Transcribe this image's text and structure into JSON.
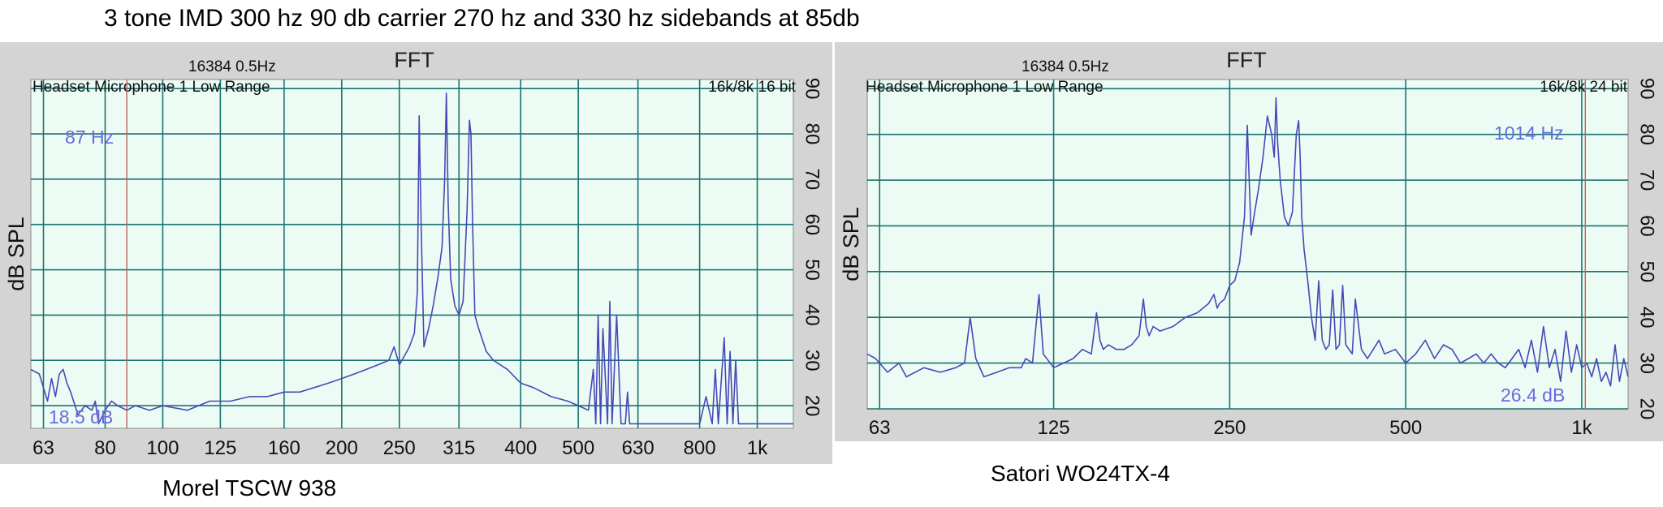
{
  "title": "3 tone IMD 300 hz 90 db carrier 270 hz and 330 hz sidebands at 85db",
  "colors": {
    "plot_bg": "#ecfcf4",
    "grid": "#1b7272",
    "trace": "#4848b8",
    "cursor": "#c06060",
    "frame": "#d4d4d4",
    "label_blue": "#6a6ae0"
  },
  "chart_data": [
    {
      "type": "line",
      "caption": "Morel TSCW 938",
      "header": "FFT",
      "fft_info": "16384  0.5Hz",
      "device": "Headset Microphone 1 Low Range",
      "format": "16k/8k 16 bit",
      "ylabel": "dB SPL",
      "x_scale": "log",
      "xlim": [
        60,
        1150
      ],
      "ylim": [
        15,
        92
      ],
      "x_ticks": [
        63,
        80,
        100,
        125,
        160,
        200,
        250,
        315,
        400,
        500,
        630,
        800,
        1000
      ],
      "x_tick_labels": [
        "63",
        "80",
        "100",
        "125",
        "160",
        "200",
        "250",
        "315",
        "400",
        "500",
        "630",
        "800",
        "1k"
      ],
      "y_ticks": [
        20,
        30,
        40,
        50,
        60,
        70,
        80,
        90
      ],
      "cursor": {
        "x": 87,
        "freq_label": "87 Hz",
        "level_label": "18.5 dB"
      },
      "series": [
        {
          "x": [
            60,
            62,
            64,
            65,
            66,
            67,
            68,
            69,
            70,
            72,
            74,
            76,
            77,
            78,
            80,
            82,
            84,
            87,
            90,
            95,
            100,
            110,
            120,
            130,
            140,
            150,
            160,
            170,
            180,
            190,
            200,
            210,
            220,
            230,
            240,
            245,
            250,
            255,
            260,
            265,
            268,
            270,
            272,
            275,
            280,
            285,
            290,
            295,
            298,
            300,
            302,
            305,
            310,
            315,
            320,
            325,
            328,
            330,
            332,
            335,
            340,
            350,
            360,
            380,
            400,
            420,
            450,
            480,
            500,
            520,
            530,
            535,
            540,
            545,
            550,
            560,
            565,
            570,
            580,
            590,
            600,
            605,
            610,
            620,
            630,
            650,
            700,
            750,
            800,
            820,
            840,
            850,
            860,
            880,
            890,
            900,
            910,
            920,
            930,
            950,
            1000,
            1050,
            1100,
            1150
          ],
          "y": [
            28,
            27,
            21,
            26,
            22,
            27,
            28,
            25,
            23,
            18,
            20,
            19,
            21,
            16,
            19,
            21,
            20,
            19,
            20,
            19,
            20,
            19,
            21,
            21,
            22,
            22,
            23,
            23,
            24,
            25,
            26,
            27,
            28,
            29,
            30,
            33,
            29,
            31,
            33,
            36,
            45,
            84,
            60,
            33,
            37,
            42,
            48,
            55,
            70,
            89,
            65,
            48,
            42,
            40,
            43,
            63,
            83,
            80,
            60,
            40,
            37,
            32,
            30,
            28,
            25,
            24,
            22,
            21,
            20,
            19,
            28,
            16,
            40,
            16,
            37,
            16,
            43,
            16,
            40,
            16,
            16,
            23,
            16,
            16,
            16,
            16,
            16,
            16,
            16,
            22,
            16,
            28,
            16,
            35,
            16,
            32,
            16,
            30,
            16,
            16,
            16,
            16,
            16,
            16
          ]
        }
      ]
    },
    {
      "type": "line",
      "caption": "Satori WO24TX-4",
      "header": "FFT",
      "fft_info": "16384  0.5Hz",
      "device": "Headset Microphone 1 Low Range",
      "format": "16k/8k 24 bit",
      "ylabel": "dB SPL",
      "x_scale": "log",
      "xlim": [
        60,
        1200
      ],
      "ylim": [
        20,
        92
      ],
      "x_ticks": [
        63,
        125,
        250,
        500,
        1000
      ],
      "x_tick_labels": [
        "63",
        "125",
        "250",
        "500",
        "1k"
      ],
      "y_ticks": [
        20,
        30,
        40,
        50,
        60,
        70,
        80,
        90
      ],
      "cursor": {
        "x": 1014,
        "freq_label": "1014 Hz",
        "level_label": "26.4 dB"
      },
      "series": [
        {
          "x": [
            60,
            62,
            65,
            68,
            70,
            75,
            80,
            85,
            88,
            90,
            92,
            95,
            100,
            105,
            110,
            112,
            115,
            118,
            120,
            125,
            130,
            135,
            140,
            145,
            148,
            150,
            152,
            155,
            160,
            165,
            170,
            175,
            178,
            180,
            182,
            185,
            190,
            200,
            210,
            220,
            230,
            235,
            238,
            240,
            245,
            250,
            255,
            260,
            265,
            268,
            270,
            272,
            275,
            280,
            285,
            290,
            295,
            298,
            300,
            302,
            305,
            310,
            315,
            320,
            325,
            328,
            330,
            332,
            335,
            340,
            345,
            350,
            355,
            360,
            365,
            370,
            375,
            380,
            385,
            390,
            395,
            400,
            405,
            410,
            420,
            430,
            440,
            450,
            460,
            480,
            500,
            520,
            540,
            560,
            580,
            600,
            620,
            640,
            660,
            680,
            700,
            720,
            740,
            760,
            780,
            800,
            820,
            840,
            860,
            880,
            900,
            920,
            940,
            960,
            980,
            1000,
            1020,
            1040,
            1060,
            1080,
            1100,
            1120,
            1140,
            1160,
            1180,
            1200
          ],
          "y": [
            32,
            31,
            28,
            30,
            27,
            29,
            28,
            29,
            30,
            40,
            31,
            27,
            28,
            29,
            29,
            31,
            30,
            45,
            32,
            29,
            30,
            31,
            33,
            32,
            41,
            35,
            33,
            34,
            33,
            33,
            34,
            36,
            44,
            38,
            36,
            38,
            37,
            38,
            40,
            41,
            43,
            45,
            42,
            43,
            44,
            47,
            48,
            52,
            62,
            82,
            70,
            58,
            62,
            68,
            75,
            84,
            80,
            75,
            88,
            78,
            70,
            62,
            60,
            63,
            80,
            83,
            75,
            62,
            55,
            48,
            40,
            35,
            48,
            35,
            33,
            34,
            46,
            33,
            34,
            47,
            34,
            33,
            32,
            44,
            33,
            31,
            33,
            35,
            32,
            33,
            30,
            32,
            35,
            31,
            34,
            33,
            30,
            31,
            32,
            30,
            32,
            30,
            29,
            31,
            33,
            29,
            35,
            28,
            38,
            29,
            33,
            26,
            37,
            28,
            34,
            29,
            30,
            27,
            31,
            26,
            28,
            25,
            34,
            26,
            31,
            27
          ]
        }
      ]
    }
  ]
}
